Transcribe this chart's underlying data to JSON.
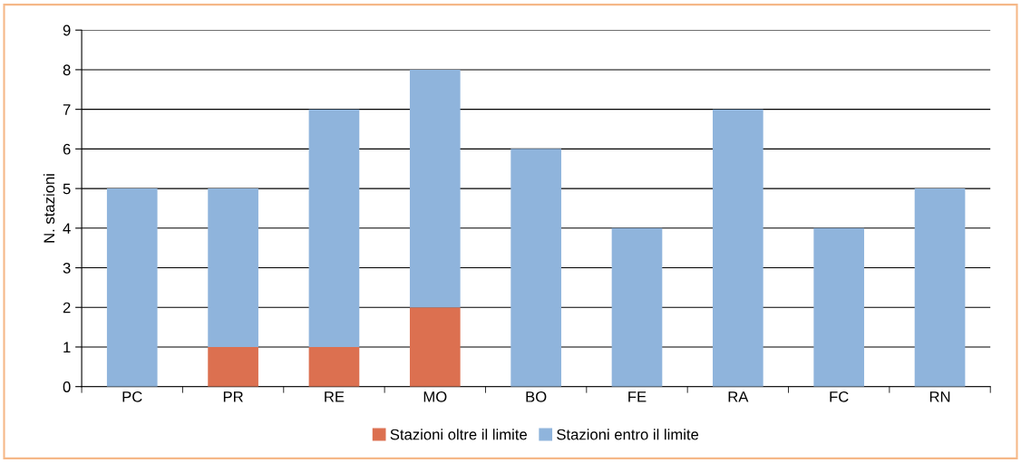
{
  "chart_data": {
    "type": "bar",
    "stacked": true,
    "ylabel": "N. stazioni",
    "categories": [
      "PC",
      "PR",
      "RE",
      "MO",
      "BO",
      "FE",
      "RA",
      "FC",
      "RN"
    ],
    "series": [
      {
        "name": "Stazioni oltre il limite",
        "color": "#dc7050",
        "values": [
          0,
          1,
          1,
          2,
          0,
          0,
          0,
          0,
          0
        ]
      },
      {
        "name": "Stazioni entro il limite",
        "color": "#8fb4dc",
        "values": [
          5,
          4,
          6,
          6,
          6,
          4,
          7,
          4,
          5
        ]
      }
    ],
    "ylim": [
      0,
      9
    ],
    "yticks": [
      0,
      1,
      2,
      3,
      4,
      5,
      6,
      7,
      8,
      9
    ],
    "grid": "y",
    "legend": "bottom"
  }
}
